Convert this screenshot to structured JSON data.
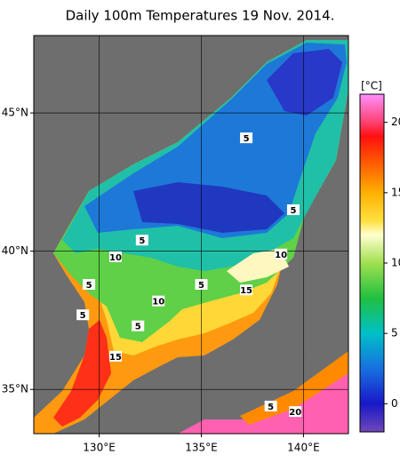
{
  "chart_data": {
    "type": "map",
    "title": "Daily 100m Temperatures 19 Nov. 2014.",
    "xlim": [
      126.8,
      142.2
    ],
    "ylim": [
      33.4,
      47.8
    ],
    "xticks": [
      {
        "value": 130,
        "label": "130°E"
      },
      {
        "value": 135,
        "label": "135°E"
      },
      {
        "value": 140,
        "label": "140°E"
      }
    ],
    "yticks": [
      {
        "value": 45,
        "label": "45°N"
      },
      {
        "value": 40,
        "label": "40°N"
      },
      {
        "value": 35,
        "label": "35°N"
      }
    ],
    "grid": true,
    "colorbar": {
      "label": "[°C]",
      "lim": [
        -2,
        22
      ],
      "ticks": [
        0,
        5,
        10,
        15,
        20
      ],
      "stops": [
        {
          "value": -2,
          "color": "#7048b8"
        },
        {
          "value": 0,
          "color": "#1818c8"
        },
        {
          "value": 2.5,
          "color": "#1870e0"
        },
        {
          "value": 5,
          "color": "#00c0c8"
        },
        {
          "value": 7.5,
          "color": "#20c040"
        },
        {
          "value": 10,
          "color": "#a0e050"
        },
        {
          "value": 12,
          "color": "#ffffd0"
        },
        {
          "value": 13,
          "color": "#ffe040"
        },
        {
          "value": 15,
          "color": "#ffb000"
        },
        {
          "value": 17,
          "color": "#ff6000"
        },
        {
          "value": 19,
          "color": "#ff1010"
        },
        {
          "value": 20,
          "color": "#ff4070"
        },
        {
          "value": 22,
          "color": "#ff90ff"
        }
      ]
    },
    "contour_labels": [
      {
        "value": 5,
        "lon": 137.2,
        "lat": 44.1
      },
      {
        "value": 5,
        "lon": 139.5,
        "lat": 41.5
      },
      {
        "value": 5,
        "lon": 132.1,
        "lat": 40.4
      },
      {
        "value": 5,
        "lon": 129.5,
        "lat": 38.8
      },
      {
        "value": 5,
        "lon": 129.2,
        "lat": 37.7
      },
      {
        "value": 5,
        "lon": 131.9,
        "lat": 37.3
      },
      {
        "value": 5,
        "lon": 138.4,
        "lat": 34.4
      },
      {
        "value": 5,
        "lon": 135.0,
        "lat": 38.8
      },
      {
        "value": 10,
        "lon": 130.8,
        "lat": 39.8
      },
      {
        "value": 10,
        "lon": 138.9,
        "lat": 39.9
      },
      {
        "value": 10,
        "lon": 132.9,
        "lat": 38.2
      },
      {
        "value": 15,
        "lon": 137.2,
        "lat": 38.6
      },
      {
        "value": 15,
        "lon": 130.8,
        "lat": 36.2
      },
      {
        "value": 20,
        "lon": 139.6,
        "lat": 34.2
      }
    ]
  }
}
